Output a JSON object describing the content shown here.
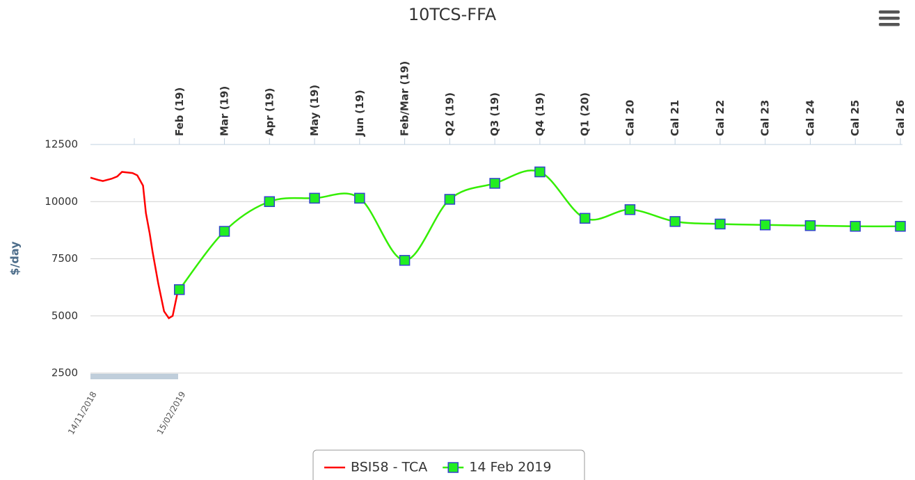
{
  "chart_data": {
    "type": "line",
    "title": "10TCS-FFA",
    "y_label": "$/day",
    "categories": [
      null,
      "Feb (19)",
      "Mar (19)",
      "Apr (19)",
      "May (19)",
      "Jun (19)",
      "Feb/Mar (19)",
      "Q2 (19)",
      "Q3 (19)",
      "Q4 (19)",
      "Q1 (20)",
      "Cal 20",
      "Cal 21",
      "Cal 22",
      "Cal 23",
      "Cal 24",
      "Cal 25",
      "Cal 26"
    ],
    "series": [
      {
        "name": "BSI58 - TCA",
        "color": "#ff0000",
        "axis": "x2",
        "x": [
          "14/11/2018",
          "22/11/2018",
          "27/11/2018",
          "06/12/2018",
          "12/12/2018",
          "17/12/2018",
          "28/12/2018",
          "02/01/2019",
          "08/01/2019",
          "11/01/2019",
          "15/01/2019",
          "18/01/2019",
          "24/01/2019",
          "30/01/2019",
          "04/02/2019",
          "08/02/2019",
          "13/02/2019",
          "15/02/2019"
        ],
        "values": [
          11050,
          10950,
          10900,
          11000,
          11100,
          11300,
          11250,
          11150,
          10700,
          9500,
          8600,
          7800,
          6400,
          5200,
          4900,
          5000,
          6000,
          6150
        ]
      },
      {
        "name": "14 Feb 2019",
        "color": "#33ee00",
        "marker_color": "#22ee22",
        "marker_border": "#3344cc",
        "values": [
          null,
          6150,
          8700,
          10000,
          10150,
          10150,
          7430,
          10100,
          10800,
          11300,
          9270,
          9650,
          9130,
          9020,
          8980,
          8950,
          8920,
          8920
        ]
      }
    ],
    "x2lim": [
      "14/11/2018",
      "15/02/2019"
    ],
    "x2ticks": [
      "14/11/2018",
      "15/02/2019"
    ],
    "ylim": [
      2500,
      12500
    ],
    "yticks": [
      2500,
      5000,
      7500,
      10000,
      12500
    ],
    "grid": true,
    "legend": "bottom"
  }
}
